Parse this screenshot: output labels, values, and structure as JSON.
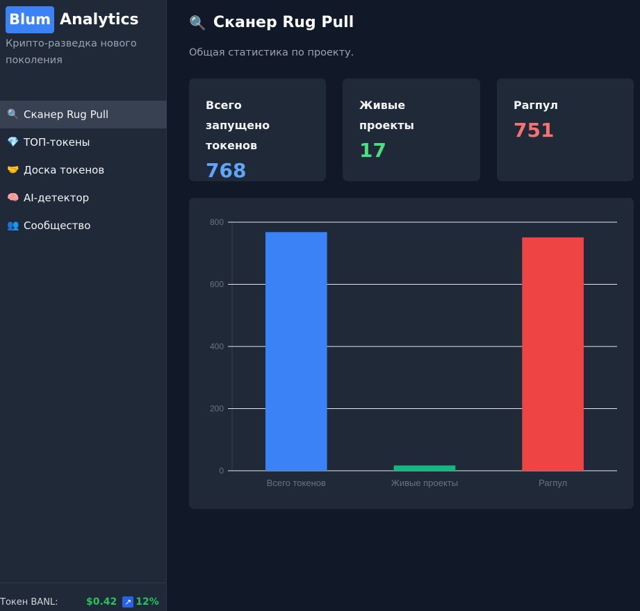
{
  "brand": {
    "badge": "Blum",
    "name": "Analytics",
    "tagline": "Крипто-разведка нового поколения"
  },
  "nav": {
    "items": [
      {
        "icon": "🔍",
        "icon_name": "magnifier-icon",
        "label": "Сканер Rug Pull",
        "active": true
      },
      {
        "icon": "💎",
        "icon_name": "diamond-icon",
        "label": "ТОП-токены"
      },
      {
        "icon": "🤝",
        "icon_name": "handshake-icon",
        "label": "Доска токенов"
      },
      {
        "icon": "🧠",
        "icon_name": "brain-icon",
        "label": "AI-детектор"
      },
      {
        "icon": "👥",
        "icon_name": "people-icon",
        "label": "Сообщество"
      }
    ]
  },
  "token": {
    "label": "Токен BANL:",
    "price": "$0.42",
    "arrow": "↗",
    "change": "12%"
  },
  "page": {
    "icon": "🔍",
    "title": "Сканер Rug Pull",
    "subtitle": "Общая статистика по проекту."
  },
  "stats": [
    {
      "label": "Всего запущено токенов",
      "value": "768",
      "color": "#60a5fa"
    },
    {
      "label": "Живые проекты",
      "value": "17",
      "color": "#4ade80"
    },
    {
      "label": "Рагпул",
      "value": "751",
      "color": "#f87171"
    }
  ],
  "chart_data": {
    "type": "bar",
    "categories": [
      "Всего токенов",
      "Живые проекты",
      "Рагпул"
    ],
    "values": [
      768,
      17,
      751
    ],
    "colors": [
      "#3b82f6",
      "#10b981",
      "#ef4444"
    ],
    "yticks": [
      0,
      200,
      400,
      600,
      800
    ],
    "ylim": [
      0,
      800
    ],
    "grid": true,
    "title": "",
    "xlabel": "",
    "ylabel": ""
  }
}
